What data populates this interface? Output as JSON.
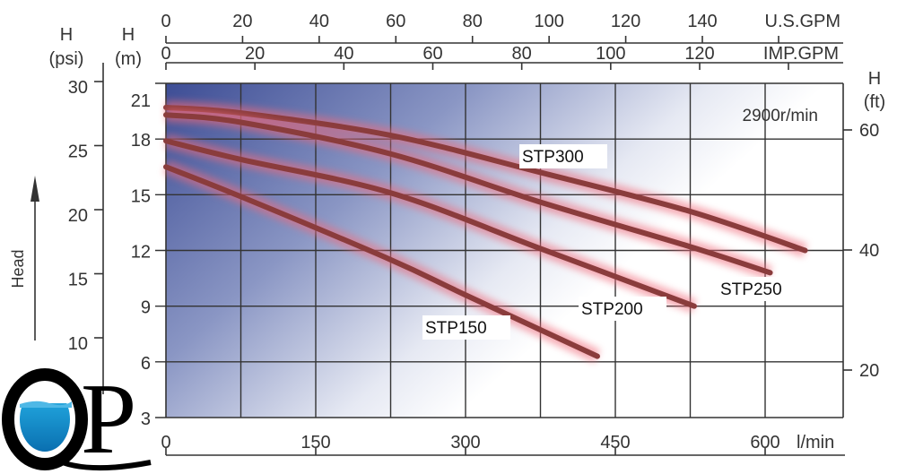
{
  "chart_data": {
    "type": "line",
    "title": "",
    "annotation": "2900r/min",
    "xlabel": "l/min",
    "ylabel": "Head",
    "xlim": [
      0,
      680
    ],
    "ylim": [
      3,
      21
    ],
    "grid": true,
    "x_ticks": [
      "0",
      "150",
      "300",
      "450",
      "600"
    ],
    "x_tick_values": [
      0,
      150,
      300,
      450,
      600
    ],
    "y_m_label": "H",
    "y_m_unit": "(m)",
    "y_m_ticks": [
      "21",
      "18",
      "15",
      "12",
      "9",
      "6",
      "3"
    ],
    "y_m_tick_values": [
      21,
      18,
      15,
      12,
      9,
      6,
      3
    ],
    "y_psi_label": "H",
    "y_psi_unit": "(psi)",
    "y_psi_ticks": [
      "30",
      "25",
      "20",
      "15",
      "10"
    ],
    "y_psi_tick_values": [
      30,
      25,
      20,
      15,
      10
    ],
    "y_ft_label": "H",
    "y_ft_unit": "(ft)",
    "y_ft_ticks": [
      "60",
      "40",
      "20"
    ],
    "y_ft_tick_values": [
      60,
      40,
      20
    ],
    "top_axis_imp": {
      "label": "IMP.GPM",
      "ticks": [
        "0",
        "20",
        "40",
        "60",
        "80",
        "100",
        "120"
      ],
      "values": [
        0,
        20,
        40,
        60,
        80,
        100,
        120
      ]
    },
    "top_axis_us": {
      "label": "U.S.GPM",
      "ticks": [
        "0",
        "20",
        "40",
        "60",
        "80",
        "100",
        "120",
        "140"
      ],
      "values": [
        0,
        20,
        40,
        60,
        80,
        100,
        120,
        140
      ]
    },
    "series": [
      {
        "name": "STP300",
        "x": [
          0,
          75,
          225,
          375,
          525,
          640
        ],
        "y": [
          19.7,
          19.4,
          18.2,
          16.2,
          14.1,
          12.0
        ]
      },
      {
        "name": "STP250",
        "x": [
          0,
          75,
          225,
          375,
          525,
          605
        ],
        "y": [
          19.3,
          18.9,
          17.2,
          14.6,
          12.2,
          10.8
        ]
      },
      {
        "name": "STP200",
        "x": [
          0,
          75,
          225,
          375,
          529
        ],
        "y": [
          17.9,
          16.9,
          15.1,
          12.1,
          9.0
        ]
      },
      {
        "name": "STP150",
        "x": [
          0,
          75,
          225,
          300,
          432
        ],
        "y": [
          16.5,
          14.9,
          11.5,
          9.6,
          6.3
        ]
      }
    ],
    "colors": {
      "curve": "#8a3c3c",
      "glow": "#f06a7a",
      "bg_dark": "#3d4d95",
      "grid": "#333333"
    }
  },
  "logo": {
    "text": "QP"
  }
}
